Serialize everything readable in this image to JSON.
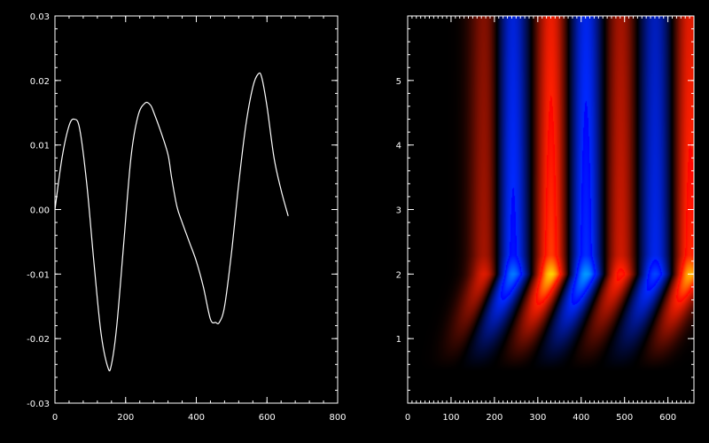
{
  "chart_data": [
    {
      "type": "line",
      "grid": false,
      "xlim": [
        0,
        800
      ],
      "ylim": [
        -0.03,
        0.03
      ],
      "x_ticks": [
        0,
        200,
        400,
        600,
        800
      ],
      "x_tick_labels": [
        "0",
        "200",
        "400",
        "600",
        "800"
      ],
      "y_ticks": [
        -0.03,
        -0.02,
        -0.01,
        0.0,
        0.01,
        0.02,
        0.03
      ],
      "y_tick_labels": [
        "-0.03",
        "-0.02",
        "-0.01",
        "0.00",
        "0.01",
        "0.02",
        "0.03"
      ],
      "line_color": "#ffffff",
      "series": [
        {
          "x": [
            0,
            20,
            40,
            55,
            70,
            90,
            110,
            130,
            150,
            160,
            175,
            195,
            215,
            235,
            255,
            270,
            280,
            300,
            320,
            330,
            345,
            360,
            380,
            400,
            420,
            440,
            455,
            465,
            480,
            500,
            520,
            540,
            560,
            575,
            585,
            600,
            620,
            640,
            660
          ],
          "y": [
            0.0,
            0.008,
            0.013,
            0.014,
            0.0125,
            0.004,
            -0.008,
            -0.019,
            -0.0245,
            -0.024,
            -0.018,
            -0.005,
            0.008,
            0.0145,
            0.0165,
            0.0162,
            0.015,
            0.012,
            0.0085,
            0.005,
            0.0005,
            -0.002,
            -0.005,
            -0.008,
            -0.012,
            -0.017,
            -0.0175,
            -0.0175,
            -0.015,
            -0.0065,
            0.004,
            0.013,
            0.019,
            0.021,
            0.0205,
            0.016,
            0.008,
            0.003,
            -0.001
          ]
        }
      ]
    },
    {
      "type": "heatmap",
      "grid": false,
      "xlim": [
        0,
        660
      ],
      "ylim": [
        0,
        6
      ],
      "x_ticks": [
        0,
        100,
        200,
        300,
        400,
        500,
        600
      ],
      "x_tick_labels": [
        "0",
        "100",
        "200",
        "300",
        "400",
        "500",
        "600"
      ],
      "y_ticks": [
        1,
        2,
        3,
        4,
        5
      ],
      "y_tick_labels": [
        "1",
        "2",
        "3",
        "4",
        "5"
      ],
      "colormap": [
        "#0000ff",
        "#000000",
        "#ff2000",
        "#ffd000"
      ],
      "bands_upper": [
        {
          "x": 180,
          "sign": 1,
          "peak": 0.6
        },
        {
          "x": 240,
          "sign": -1,
          "peak": 0.95
        },
        {
          "x": 330,
          "sign": 1,
          "peak": 1.0
        },
        {
          "x": 410,
          "sign": -1,
          "peak": 1.0
        },
        {
          "x": 490,
          "sign": 1,
          "peak": 0.7
        },
        {
          "x": 570,
          "sign": -1,
          "peak": 0.8
        },
        {
          "x": 650,
          "sign": 1,
          "peak": 0.95
        }
      ],
      "bands_lower": [
        {
          "x": 80,
          "sign": 1,
          "peak": 0.35
        },
        {
          "x": 170,
          "sign": -1,
          "peak": 0.3
        },
        {
          "x": 270,
          "sign": 1,
          "peak": 0.4
        },
        {
          "x": 380,
          "sign": -1,
          "peak": 0.3
        },
        {
          "x": 470,
          "sign": 1,
          "peak": 0.35
        },
        {
          "x": 560,
          "sign": -1,
          "peak": 0.3
        }
      ],
      "band_width": 38,
      "transition_y": 2.0,
      "cutoff_y": 0.5
    }
  ]
}
